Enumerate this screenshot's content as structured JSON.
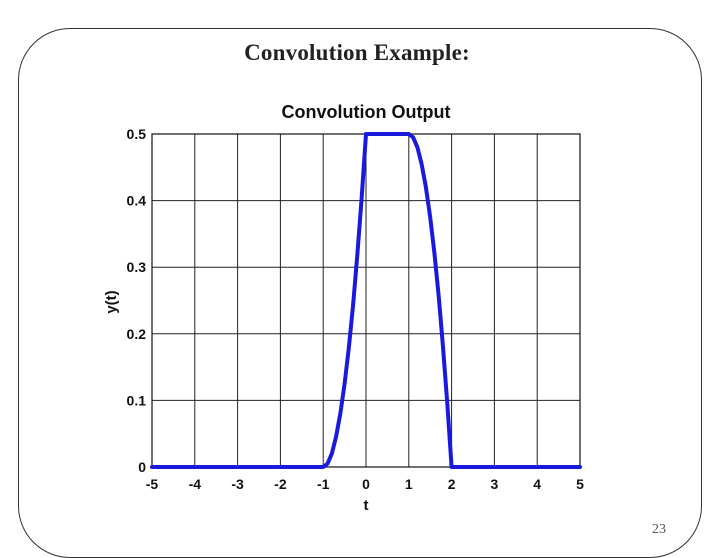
{
  "slide": {
    "title": "Convolution Example:",
    "page_number": "23"
  },
  "chart_data": {
    "type": "line",
    "title": "Convolution Output",
    "xlabel": "t",
    "ylabel": "y(t)",
    "xlim": [
      -5,
      5
    ],
    "ylim": [
      0,
      0.5
    ],
    "x_ticks": [
      -5,
      -4,
      -3,
      -2,
      -1,
      0,
      1,
      2,
      3,
      4,
      5
    ],
    "x_tick_labels": [
      "-5",
      "-4",
      "-3",
      "-2",
      "-1",
      "0",
      "1",
      "2",
      "3",
      "4",
      "5"
    ],
    "y_ticks": [
      0,
      0.1,
      0.2,
      0.3,
      0.4,
      0.5
    ],
    "y_tick_labels": [
      "0",
      "0.1",
      "0.2",
      "0.3",
      "0.4",
      "0.5"
    ],
    "grid": true,
    "series_color": "#1a1adf",
    "series": [
      {
        "x": [
          -5,
          -1,
          -0.9,
          -0.8,
          -0.7,
          -0.6,
          -0.5,
          -0.4,
          -0.3,
          -0.2,
          -0.1,
          0,
          1,
          1.1,
          1.2,
          1.3,
          1.4,
          1.5,
          1.6,
          1.7,
          1.8,
          1.9,
          2,
          2.02,
          5
        ],
        "y": [
          0,
          0,
          0.005,
          0.02,
          0.045,
          0.08,
          0.125,
          0.18,
          0.245,
          0.32,
          0.405,
          0.5,
          0.5,
          0.495,
          0.48,
          0.455,
          0.42,
          0.375,
          0.32,
          0.255,
          0.18,
          0.095,
          0.0,
          0,
          0
        ]
      }
    ]
  }
}
